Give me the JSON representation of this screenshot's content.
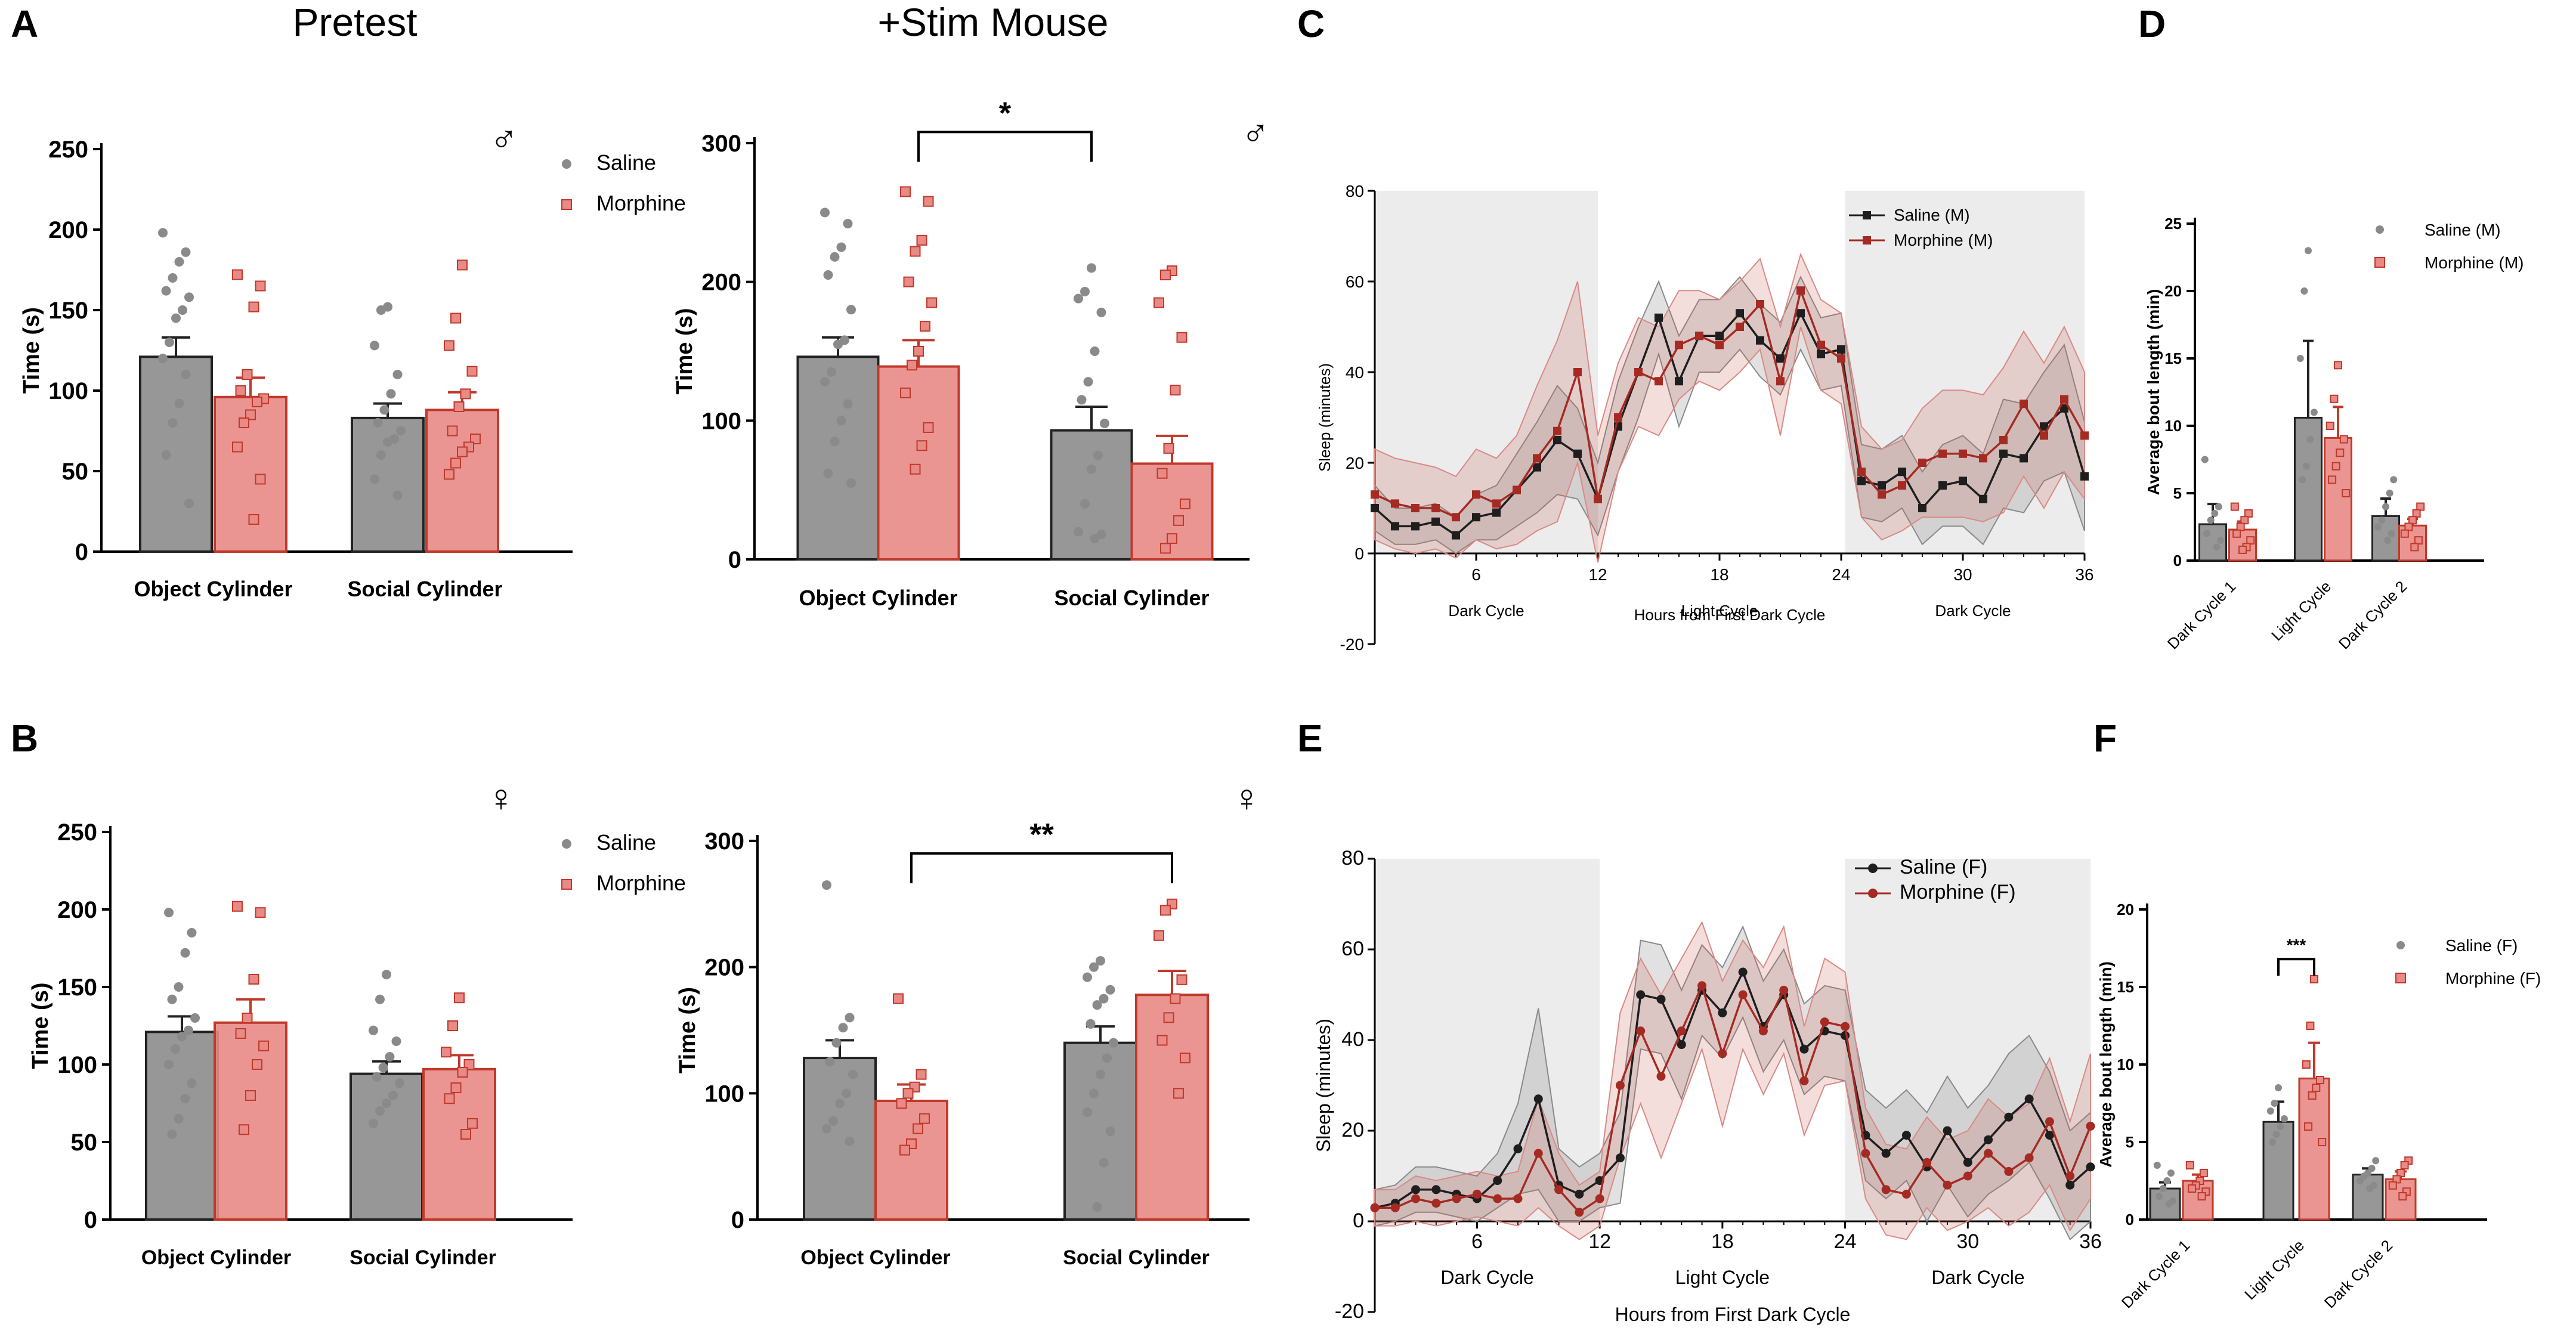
{
  "colors": {
    "saline": "#2b2b2b",
    "morphine": "#c0392b",
    "saline_fill": "#8c8c8c",
    "morphine_fill": "#e88a86",
    "dark_shade": "#ececec"
  },
  "chart_data": [
    {
      "id": "A-pretest",
      "panel_letter": "A",
      "title": "Pretest",
      "type": "bar",
      "sex_symbol": "♂",
      "categories": [
        "Object Cylinder",
        "Social Cylinder"
      ],
      "ylabel": "Time (s)",
      "ylim": [
        0,
        250
      ],
      "yticks": [
        0,
        50,
        100,
        150,
        200,
        250
      ],
      "legend": [
        "Saline",
        "Morphine"
      ],
      "series": [
        {
          "name": "Saline",
          "values": [
            121,
            83
          ],
          "sem": [
            12,
            9
          ],
          "points": [
            [
              198,
              186,
              180,
              170,
              162,
              158,
              150,
              145,
              130,
              120,
              110,
              92,
              80,
              60,
              30
            ],
            [
              152,
              150,
              128,
              110,
              98,
              88,
              80,
              75,
              70,
              68,
              60,
              45,
              35
            ]
          ]
        },
        {
          "name": "Morphine",
          "values": [
            96,
            88
          ],
          "sem": [
            12,
            11
          ],
          "points": [
            [
              172,
              165,
              152,
              110,
              100,
              95,
              93,
              85,
              80,
              65,
              45,
              20
            ],
            [
              178,
              145,
              128,
              112,
              98,
              90,
              75,
              70,
              65,
              62,
              55,
              48
            ]
          ]
        }
      ],
      "significance": null
    },
    {
      "id": "A-stim",
      "panel_letter": "",
      "title": "+Stim Mouse",
      "type": "bar",
      "sex_symbol": "♂",
      "categories": [
        "Object Cylinder",
        "Social Cylinder"
      ],
      "ylabel": "Time (s)",
      "ylim": [
        0,
        300
      ],
      "yticks": [
        0,
        100,
        200,
        300
      ],
      "legend": [],
      "series": [
        {
          "name": "Saline",
          "values": [
            146,
            93
          ],
          "sem": [
            14,
            17
          ],
          "points": [
            [
              250,
              242,
              225,
              218,
              205,
              180,
              158,
              155,
              135,
              128,
              112,
              100,
              85,
              62,
              55
            ],
            [
              210,
              193,
              188,
              178,
              150,
              128,
              115,
              98,
              75,
              65,
              40,
              20,
              18,
              15
            ]
          ]
        },
        {
          "name": "Morphine",
          "values": [
            139,
            69
          ],
          "sem": [
            19,
            20
          ],
          "points": [
            [
              265,
              258,
              230,
              222,
              200,
              185,
              168,
              150,
              140,
              120,
              95,
              82,
              65
            ],
            [
              208,
              205,
              185,
              160,
              122,
              80,
              62,
              40,
              28,
              15,
              8
            ]
          ]
        }
      ],
      "significance": {
        "label": "*",
        "from": [
          0,
          1
        ],
        "to": [
          1,
          0
        ],
        "y": 308
      }
    },
    {
      "id": "B-pretest",
      "panel_letter": "B",
      "title": "",
      "type": "bar",
      "sex_symbol": "♀",
      "categories": [
        "Object Cylinder",
        "Social Cylinder"
      ],
      "ylabel": "Time (s)",
      "ylim": [
        0,
        250
      ],
      "yticks": [
        0,
        50,
        100,
        150,
        200,
        250
      ],
      "legend": [
        "Saline",
        "Morphine"
      ],
      "series": [
        {
          "name": "Saline",
          "values": [
            121,
            94
          ],
          "sem": [
            10,
            8
          ],
          "points": [
            [
              198,
              185,
              172,
              150,
              142,
              130,
              122,
              118,
              110,
              100,
              88,
              78,
              65,
              55
            ],
            [
              158,
              142,
              122,
              115,
              105,
              98,
              92,
              88,
              80,
              75,
              70,
              62
            ]
          ]
        },
        {
          "name": "Morphine",
          "values": [
            127,
            97
          ],
          "sem": [
            15,
            9
          ],
          "points": [
            [
              202,
              198,
              155,
              130,
              120,
              112,
              100,
              80,
              58
            ],
            [
              143,
              125,
              108,
              100,
              95,
              85,
              78,
              62,
              55
            ]
          ]
        }
      ],
      "significance": null
    },
    {
      "id": "B-stim",
      "panel_letter": "",
      "title": "",
      "type": "bar",
      "sex_symbol": "♀",
      "categories": [
        "Object Cylinder",
        "Social Cylinder"
      ],
      "ylabel": "Time (s)",
      "ylim": [
        0,
        300
      ],
      "yticks": [
        0,
        100,
        200,
        300
      ],
      "legend": [],
      "series": [
        {
          "name": "Saline",
          "values": [
            128,
            140
          ],
          "sem": [
            14,
            13
          ],
          "points": [
            [
              265,
              160,
              152,
              140,
              125,
              115,
              100,
              92,
              78,
              72,
              62
            ],
            [
              205,
              200,
              192,
              182,
              175,
              170,
              155,
              140,
              128,
              115,
              100,
              85,
              70,
              45,
              10
            ]
          ]
        },
        {
          "name": "Morphine",
          "values": [
            94,
            178
          ],
          "sem": [
            13,
            19
          ],
          "points": [
            [
              175,
              115,
              105,
              100,
              92,
              80,
              72,
              60,
              55
            ],
            [
              250,
              245,
              225,
              190,
              175,
              160,
              142,
              128,
              100
            ]
          ]
        }
      ],
      "significance": {
        "label": "**",
        "from": [
          0,
          1
        ],
        "to": [
          1,
          1
        ],
        "y": 290
      }
    },
    {
      "id": "C-line",
      "panel_letter": "C",
      "type": "line",
      "xlabel": "Hours from First Dark Cycle",
      "ylabel": "Sleep (minutes)",
      "xlim": [
        1,
        36
      ],
      "ylim": [
        -20,
        80
      ],
      "xticks": [
        6,
        12,
        18,
        24,
        30,
        36
      ],
      "yticks": [
        -20,
        0,
        20,
        40,
        60,
        80
      ],
      "shaded_regions": [
        [
          1,
          12
        ],
        [
          24.2,
          36
        ]
      ],
      "region_labels": [
        "Dark Cycle",
        "Light Cycle",
        "Dark Cycle"
      ],
      "x": [
        1,
        2,
        3,
        4,
        5,
        6,
        7,
        8,
        9,
        10,
        11,
        12,
        13,
        14,
        15,
        16,
        17,
        18,
        19,
        20,
        21,
        22,
        23,
        24,
        25,
        26,
        27,
        28,
        29,
        30,
        31,
        32,
        33,
        34,
        35,
        36
      ],
      "series": [
        {
          "name": "Saline (M)",
          "marker": "square",
          "values": [
            10,
            6,
            6,
            7,
            4,
            8,
            9,
            14,
            19,
            25,
            22,
            12,
            28,
            40,
            52,
            38,
            48,
            48,
            53,
            47,
            43,
            53,
            44,
            45,
            16,
            15,
            18,
            10,
            15,
            16,
            12,
            22,
            21,
            28,
            32,
            17
          ],
          "band": [
            5,
            4,
            4,
            4,
            4,
            5,
            6,
            8,
            10,
            12,
            10,
            8,
            10,
            10,
            8,
            10,
            8,
            8,
            8,
            8,
            8,
            8,
            8,
            8,
            8,
            8,
            8,
            8,
            9,
            10,
            10,
            12,
            12,
            12,
            14,
            12
          ]
        },
        {
          "name": "Morphine (M)",
          "marker": "square",
          "values": [
            13,
            11,
            10,
            10,
            8,
            13,
            11,
            14,
            21,
            27,
            40,
            12,
            30,
            40,
            38,
            46,
            48,
            46,
            50,
            55,
            38,
            58,
            46,
            43,
            18,
            13,
            15,
            20,
            22,
            22,
            21,
            25,
            33,
            26,
            34,
            26
          ],
          "band": [
            10,
            10,
            10,
            9,
            9,
            10,
            10,
            12,
            16,
            20,
            20,
            14,
            12,
            12,
            12,
            12,
            10,
            10,
            10,
            10,
            12,
            8,
            10,
            10,
            10,
            10,
            10,
            12,
            14,
            14,
            14,
            16,
            16,
            16,
            16,
            14
          ]
        }
      ]
    },
    {
      "id": "D-bar",
      "panel_letter": "D",
      "type": "bar",
      "categories": [
        "Dark Cycle 1",
        "Light Cycle",
        "Dark Cycle 2"
      ],
      "ylabel": "Average bout length (min)",
      "ylim": [
        0,
        25
      ],
      "yticks": [
        0,
        5,
        10,
        15,
        20,
        25
      ],
      "series": [
        {
          "name": "Saline (M)",
          "values": [
            2.7,
            10.6,
            3.3
          ],
          "sem": [
            1.5,
            5.7,
            1.3
          ],
          "points": [
            [
              7.5,
              4,
              3.5,
              3,
              2,
              1.5,
              1
            ],
            [
              23,
              20,
              15,
              11,
              9,
              7,
              6
            ],
            [
              6,
              5,
              4,
              3,
              2.5,
              2,
              1.5
            ]
          ]
        },
        {
          "name": "Morphine (M)",
          "values": [
            2.3,
            9.1,
            2.6
          ],
          "sem": [
            0.6,
            2.3,
            0.5
          ],
          "points": [
            [
              4,
              3.5,
              3,
              2.5,
              2,
              1.5,
              1,
              0.8
            ],
            [
              14.5,
              12,
              10,
              9,
              8,
              7,
              6,
              5
            ],
            [
              4,
              3.5,
              3,
              2.5,
              2,
              1.5,
              1
            ]
          ]
        }
      ],
      "significance": null
    },
    {
      "id": "E-line",
      "panel_letter": "E",
      "type": "line",
      "xlabel": "Hours from First Dark Cycle",
      "ylabel": "Sleep (minutes)",
      "xlim": [
        1,
        36
      ],
      "ylim": [
        -20,
        80
      ],
      "xticks": [
        6,
        12,
        18,
        24,
        30,
        36
      ],
      "yticks": [
        -20,
        0,
        20,
        40,
        60,
        80
      ],
      "shaded_regions": [
        [
          1,
          12
        ],
        [
          24,
          36
        ]
      ],
      "region_labels": [
        "Dark Cycle",
        "Light Cycle",
        "Dark Cycle"
      ],
      "x": [
        1,
        2,
        3,
        4,
        5,
        6,
        7,
        8,
        9,
        10,
        11,
        12,
        13,
        14,
        15,
        16,
        17,
        18,
        19,
        20,
        21,
        22,
        23,
        24,
        25,
        26,
        27,
        28,
        29,
        30,
        31,
        32,
        33,
        34,
        35,
        36
      ],
      "series": [
        {
          "name": "Saline (F)",
          "marker": "circle",
          "values": [
            3,
            4,
            7,
            7,
            6,
            5,
            9,
            16,
            27,
            8,
            6,
            9,
            14,
            50,
            49,
            39,
            51,
            46,
            55,
            43,
            50,
            38,
            42,
            41,
            19,
            15,
            19,
            12,
            20,
            13,
            18,
            23,
            27,
            19,
            8,
            12
          ],
          "band": [
            4,
            4,
            5,
            5,
            5,
            5,
            6,
            10,
            20,
            8,
            6,
            6,
            10,
            12,
            12,
            12,
            10,
            10,
            10,
            10,
            10,
            10,
            10,
            10,
            10,
            10,
            10,
            12,
            12,
            12,
            12,
            14,
            14,
            14,
            12,
            12
          ]
        },
        {
          "name": "Morphine (F)",
          "marker": "circle",
          "values": [
            3,
            3,
            5,
            4,
            5,
            6,
            5,
            5,
            15,
            7,
            2,
            5,
            30,
            42,
            32,
            42,
            52,
            37,
            50,
            42,
            51,
            31,
            44,
            43,
            15,
            7,
            6,
            13,
            8,
            10,
            15,
            11,
            14,
            22,
            10,
            21
          ],
          "band": [
            4,
            4,
            5,
            5,
            5,
            5,
            5,
            6,
            12,
            8,
            6,
            6,
            16,
            16,
            18,
            16,
            14,
            16,
            12,
            14,
            14,
            12,
            14,
            12,
            10,
            10,
            10,
            10,
            10,
            10,
            12,
            12,
            12,
            14,
            12,
            16
          ]
        }
      ]
    },
    {
      "id": "F-bar",
      "panel_letter": "F",
      "type": "bar",
      "categories": [
        "Dark Cycle 1",
        "Light Cycle",
        "Dark Cycle 2"
      ],
      "ylabel": "Average bout length (min)",
      "ylim": [
        0,
        20
      ],
      "yticks": [
        0,
        5,
        10,
        15,
        20
      ],
      "series": [
        {
          "name": "Saline (F)",
          "values": [
            2.0,
            6.3,
            2.9
          ],
          "sem": [
            0.4,
            1.3,
            0.4
          ],
          "points": [
            [
              3.5,
              3,
              2.5,
              2,
              1.5,
              1.2,
              1
            ],
            [
              8.5,
              7.5,
              7,
              6.5,
              6,
              5.5,
              5
            ],
            [
              3.8,
              3.3,
              3,
              2.8,
              2.5,
              2.2,
              2
            ]
          ]
        },
        {
          "name": "Morphine (F)",
          "values": [
            2.5,
            9.1,
            2.6
          ],
          "sem": [
            0.4,
            2.3,
            0.5
          ],
          "points": [
            [
              3.5,
              3,
              2.5,
              2.2,
              2,
              1.8,
              1.5
            ],
            [
              15.5,
              12.5,
              10,
              9,
              8.5,
              8,
              6,
              5
            ],
            [
              3.8,
              3.5,
              3,
              2.6,
              2.2,
              1.8,
              1.5
            ]
          ]
        }
      ],
      "significance": {
        "label": "***",
        "from": [
          1,
          0
        ],
        "to": [
          1,
          1
        ],
        "y": 16.8
      }
    }
  ]
}
